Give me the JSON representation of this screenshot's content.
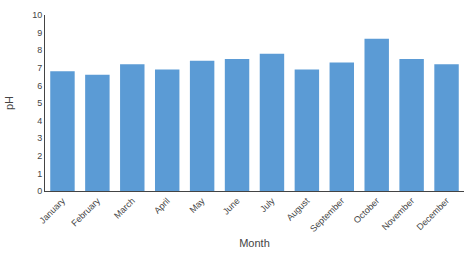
{
  "chart_data": {
    "type": "bar",
    "categories": [
      "January",
      "February",
      "March",
      "April",
      "May",
      "June",
      "July",
      "August",
      "September",
      "October",
      "November",
      "December"
    ],
    "values": [
      6.8,
      6.6,
      7.2,
      6.9,
      7.4,
      7.5,
      7.8,
      6.9,
      7.3,
      8.65,
      7.5,
      7.2
    ],
    "color": "#5b9bd5",
    "xlabel": "Month",
    "ylabel": "pH",
    "ylim": [
      0,
      10
    ],
    "yticks": [
      0,
      1,
      2,
      3,
      4,
      5,
      6,
      7,
      8,
      9,
      10
    ],
    "grid": false
  }
}
